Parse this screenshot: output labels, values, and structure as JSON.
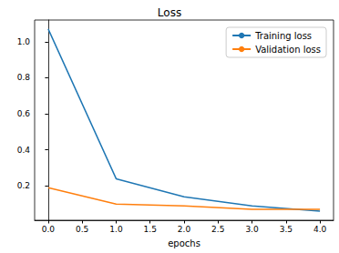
{
  "chart_data": {
    "type": "line",
    "title": "Loss",
    "x_label": "epochs",
    "x": [
      0,
      1,
      2,
      3,
      4
    ],
    "series": [
      {
        "name": "Training loss",
        "color": "#1f77b4",
        "values": [
          1.07,
          0.24,
          0.14,
          0.09,
          0.06
        ]
      },
      {
        "name": "Validation loss",
        "color": "#ff7f0e",
        "values": [
          0.19,
          0.1,
          0.09,
          0.07,
          0.07
        ]
      }
    ],
    "xlim": [
      -0.2,
      4.2
    ],
    "xticks": [
      {
        "value": 0,
        "label": "0.0"
      },
      {
        "value": 0.5,
        "label": "0.5"
      },
      {
        "value": 1,
        "label": "1.0"
      },
      {
        "value": 1.5,
        "label": "1.5"
      },
      {
        "value": 2,
        "label": "2.0"
      },
      {
        "value": 2.5,
        "label": "2.5"
      },
      {
        "value": 3,
        "label": "3.0"
      },
      {
        "value": 3.5,
        "label": "3.5"
      },
      {
        "value": 4,
        "label": "4.0"
      }
    ],
    "ylim": [
      0.01,
      1.12
    ],
    "yticks": [
      {
        "value": 0.2,
        "label": "0.2"
      },
      {
        "value": 0.4,
        "label": "0.4"
      },
      {
        "value": 0.6,
        "label": "0.6"
      },
      {
        "value": 0.8,
        "label": "0.8"
      },
      {
        "value": 1.0,
        "label": "1.0"
      }
    ],
    "grid": false,
    "legend": "upper right"
  }
}
